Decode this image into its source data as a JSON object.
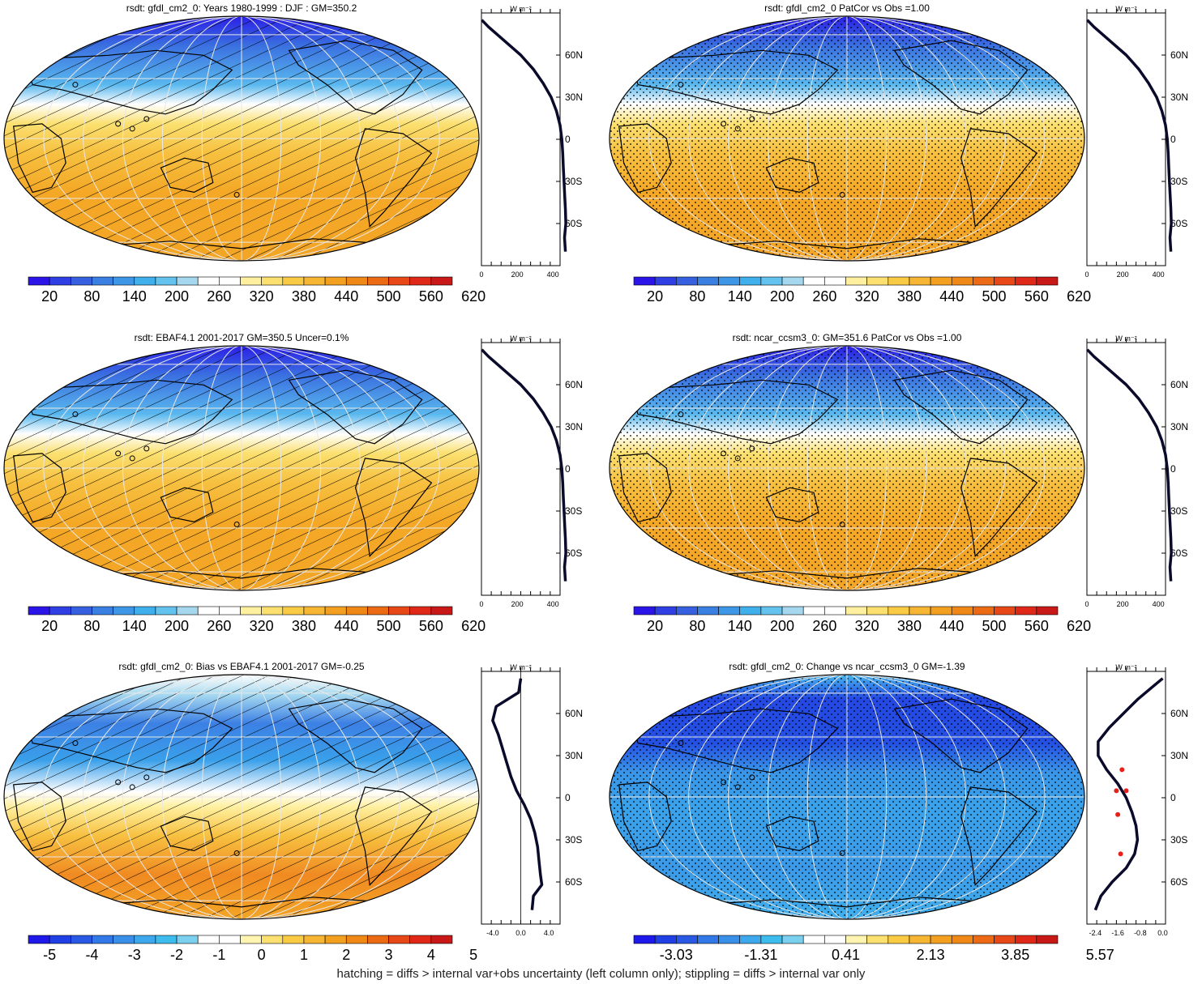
{
  "footer": "hatching = diffs > internal var+obs uncertainty (left column only); stippling = diffs > internal var only",
  "lat_ticks": [
    "60N",
    "30N",
    "0",
    "30S",
    "60S"
  ],
  "units_label": "W m⁻²",
  "colors": {
    "abs_palette": [
      "#2b14e8",
      "#2f3fe3",
      "#3660e0",
      "#3a7fe2",
      "#3e96e6",
      "#3fb0ec",
      "#63c2ee",
      "#a5d8ee",
      "#ffffff",
      "#ffffff",
      "#fff0a0",
      "#fbe070",
      "#f9cb45",
      "#f6b533",
      "#f3a020",
      "#f08818",
      "#ec6a14",
      "#e84818",
      "#e02818",
      "#c81818"
    ],
    "diff_palette": [
      "#1e18ea",
      "#2040e6",
      "#2858e4",
      "#3278e6",
      "#3a90e8",
      "#3ea8ec",
      "#3fbcee",
      "#7ad0ee",
      "#ffffff",
      "#ffffff",
      "#fff4b0",
      "#fbe070",
      "#f9cb45",
      "#f6b533",
      "#f3a020",
      "#f08818",
      "#ec6a14",
      "#e84818",
      "#e02818",
      "#c81818"
    ],
    "profile_line": "#0a0a2a",
    "profile_outlier": "#e8201a"
  },
  "panels": [
    {
      "id": "model-climatology",
      "title": "rsdt: gfdl_cm2_0: Years 1980-1999 : DJF : GM=350.2",
      "colorbar_labels": [
        "20",
        "80",
        "140",
        "200",
        "260",
        "320",
        "380",
        "440",
        "500",
        "560",
        "620"
      ],
      "profile_ticks": [
        "0",
        "200",
        "400"
      ],
      "pattern": "hatch"
    },
    {
      "id": "model-vs-obs",
      "title": "rsdt: gfdl_cm2_0 PatCor vs Obs =1.00",
      "colorbar_labels": [
        "20",
        "80",
        "140",
        "200",
        "260",
        "320",
        "380",
        "440",
        "500",
        "560",
        "620"
      ],
      "profile_ticks": [
        "0",
        "200",
        "400"
      ],
      "pattern": "stipple"
    },
    {
      "id": "obs-climatology",
      "title": "rsdt: EBAF4.1 2001-2017 GM=350.5 Uncer=0.1%",
      "colorbar_labels": [
        "20",
        "80",
        "140",
        "200",
        "260",
        "320",
        "380",
        "440",
        "500",
        "560",
        "620"
      ],
      "profile_ticks": [
        "0",
        "200",
        "400"
      ],
      "pattern": "hatch"
    },
    {
      "id": "reference-model",
      "title": "rsdt: ncar_ccsm3_0: GM=351.6 PatCor vs Obs =1.00",
      "colorbar_labels": [
        "20",
        "80",
        "140",
        "200",
        "260",
        "320",
        "380",
        "440",
        "500",
        "560",
        "620"
      ],
      "profile_ticks": [
        "0",
        "200",
        "400"
      ],
      "pattern": "stipple"
    },
    {
      "id": "bias-vs-obs",
      "title": "rsdt: gfdl_cm2_0: Bias vs EBAF4.1 2001-2017 GM=-0.25",
      "colorbar_labels": [
        "-5",
        "-4",
        "-3",
        "-2",
        "-1",
        "0",
        "1",
        "2",
        "3",
        "4",
        "5"
      ],
      "profile_ticks": [
        "-4.0",
        "0.0",
        "4.0"
      ],
      "pattern": "hatch"
    },
    {
      "id": "change-vs-model",
      "title": "rsdt: gfdl_cm2_0: Change vs ncar_ccsm3_0 GM=-1.39",
      "colorbar_labels": [
        "-3.03",
        "-1.31",
        "0.41",
        "2.13",
        "3.85",
        "5.57"
      ],
      "profile_ticks": [
        "-2.4",
        "-1.6",
        "-0.8",
        "0.0"
      ],
      "pattern": "stipple"
    }
  ],
  "chart_data": [
    {
      "type": "heatmap",
      "title": "rsdt: gfdl_cm2_0: Years 1980-1999 : DJF : GM=350.2",
      "projection": "Robinson",
      "colorbar_ticks": [
        20,
        80,
        140,
        200,
        260,
        320,
        380,
        440,
        500,
        560,
        620
      ],
      "zonal_mean_profile": {
        "x_ticks": [
          0,
          200,
          400
        ],
        "lat": [
          85,
          80,
          70,
          60,
          50,
          40,
          30,
          20,
          10,
          0,
          -10,
          -20,
          -30,
          -40,
          -50,
          -60,
          -70,
          -80
        ],
        "values": [
          2,
          40,
          130,
          220,
          290,
          345,
          390,
          420,
          440,
          450,
          455,
          458,
          462,
          466,
          470,
          472,
          465,
          470
        ]
      },
      "pattern": "hatching"
    },
    {
      "type": "heatmap",
      "title": "rsdt: gfdl_cm2_0 PatCor vs Obs =1.00",
      "projection": "Robinson",
      "colorbar_ticks": [
        20,
        80,
        140,
        200,
        260,
        320,
        380,
        440,
        500,
        560,
        620
      ],
      "zonal_mean_profile": {
        "x_ticks": [
          0,
          200,
          400
        ],
        "lat": [
          85,
          80,
          70,
          60,
          50,
          40,
          30,
          20,
          10,
          0,
          -10,
          -20,
          -30,
          -40,
          -50,
          -60,
          -70,
          -80
        ],
        "values": [
          2,
          40,
          130,
          220,
          290,
          345,
          390,
          420,
          440,
          450,
          455,
          458,
          462,
          466,
          470,
          472,
          465,
          470
        ]
      },
      "pattern": "stippling"
    },
    {
      "type": "heatmap",
      "title": "rsdt: EBAF4.1 2001-2017 GM=350.5 Uncer=0.1%",
      "projection": "Robinson",
      "colorbar_ticks": [
        20,
        80,
        140,
        200,
        260,
        320,
        380,
        440,
        500,
        560,
        620
      ],
      "zonal_mean_profile": {
        "x_ticks": [
          0,
          200,
          400
        ],
        "lat": [
          85,
          80,
          70,
          60,
          50,
          40,
          30,
          20,
          10,
          0,
          -10,
          -20,
          -30,
          -40,
          -50,
          -60,
          -70,
          -80
        ],
        "values": [
          2,
          40,
          130,
          220,
          290,
          345,
          390,
          420,
          440,
          450,
          455,
          458,
          462,
          466,
          470,
          472,
          465,
          470
        ]
      },
      "pattern": "hatching"
    },
    {
      "type": "heatmap",
      "title": "rsdt: ncar_ccsm3_0: GM=351.6 PatCor vs Obs =1.00",
      "projection": "Robinson",
      "colorbar_ticks": [
        20,
        80,
        140,
        200,
        260,
        320,
        380,
        440,
        500,
        560,
        620
      ],
      "zonal_mean_profile": {
        "x_ticks": [
          0,
          200,
          400
        ],
        "lat": [
          85,
          80,
          70,
          60,
          50,
          40,
          30,
          20,
          10,
          0,
          -10,
          -20,
          -30,
          -40,
          -50,
          -60,
          -70,
          -80
        ],
        "values": [
          2,
          40,
          130,
          220,
          290,
          345,
          390,
          420,
          440,
          450,
          455,
          458,
          462,
          466,
          470,
          472,
          465,
          470
        ]
      },
      "pattern": "stippling"
    },
    {
      "type": "heatmap",
      "title": "rsdt: gfdl_cm2_0: Bias vs EBAF4.1 2001-2017 GM=-0.25",
      "projection": "Robinson",
      "colorbar_ticks": [
        -5,
        -4,
        -3,
        -2,
        -1,
        0,
        1,
        2,
        3,
        4,
        5
      ],
      "zonal_mean_profile": {
        "x_ticks": [
          -4.0,
          0.0,
          4.0
        ],
        "lat": [
          85,
          75,
          65,
          55,
          45,
          35,
          25,
          15,
          5,
          -5,
          -15,
          -25,
          -35,
          -45,
          -55,
          -62,
          -70,
          -80
        ],
        "values": [
          0,
          -0.3,
          -3.5,
          -4.0,
          -3.2,
          -2.6,
          -2.0,
          -1.4,
          -0.6,
          0.5,
          1.4,
          2.0,
          2.4,
          2.6,
          2.8,
          3.0,
          1.8,
          1.6
        ]
      },
      "pattern": "hatching"
    },
    {
      "type": "heatmap",
      "title": "rsdt: gfdl_cm2_0: Change vs ncar_ccsm3_0 GM=-1.39",
      "projection": "Robinson",
      "colorbar_ticks": [
        -3.03,
        -1.31,
        0.41,
        2.13,
        3.85,
        5.57
      ],
      "zonal_mean_profile": {
        "x_ticks": [
          -2.4,
          -1.6,
          -0.8,
          0.0
        ],
        "lat": [
          85,
          80,
          70,
          60,
          50,
          40,
          30,
          20,
          10,
          0,
          -10,
          -20,
          -30,
          -40,
          -50,
          -60,
          -70,
          -80
        ],
        "values": [
          0.0,
          -0.3,
          -0.9,
          -1.4,
          -1.9,
          -2.3,
          -2.3,
          -2.0,
          -1.6,
          -1.3,
          -1.1,
          -0.95,
          -0.9,
          -1.0,
          -1.3,
          -1.8,
          -2.2,
          -2.4
        ]
      },
      "pattern": "stippling"
    }
  ]
}
